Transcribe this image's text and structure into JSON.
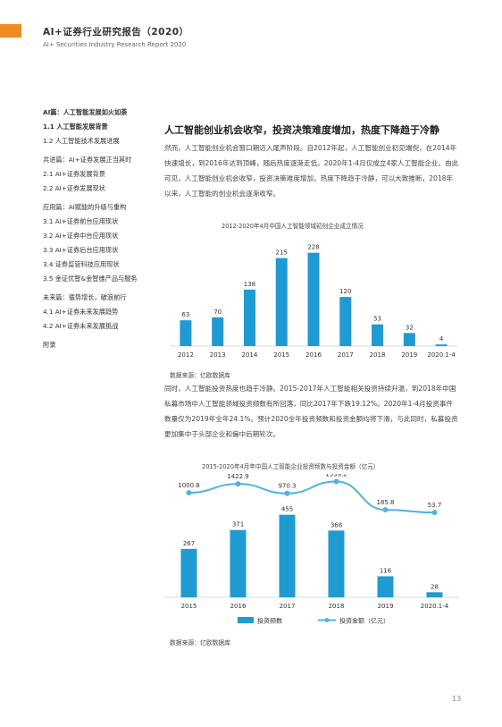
{
  "header": {
    "title": "AI+证券行业研究报告（2020）",
    "subtitle": "AI+ Securities Industry Research Report 2020",
    "accent_color": "#f08a24"
  },
  "toc": [
    {
      "label": "AI篇：人工智能发展如火如荼",
      "bold": true
    },
    {
      "label": "1.1 人工智能发展背景",
      "bold": true
    },
    {
      "label": "1.2 人工智能技术发展进展",
      "bold": false
    },
    {
      "gap": true
    },
    {
      "label": "共进篇：AI+证券发展正当其时",
      "bold": false
    },
    {
      "label": "2.1 AI+证券发展背景",
      "bold": false
    },
    {
      "label": "2.2 AI+证券发展现状",
      "bold": false
    },
    {
      "gap": true
    },
    {
      "label": "应用篇：AI赋能的升级与重构",
      "bold": false
    },
    {
      "label": "3.1 AI+证券前台应用现状",
      "bold": false
    },
    {
      "label": "3.2 AI+证券中台应用现状",
      "bold": false
    },
    {
      "label": "3.3 AI+证券后台应用现状",
      "bold": false
    },
    {
      "label": "3.4 证券监管科技应用现状",
      "bold": false
    },
    {
      "label": "3.5 金证优智&金智维产品与服务",
      "bold": false
    },
    {
      "gap": true
    },
    {
      "label": "未来篇：循势增长，破浪前行",
      "bold": false
    },
    {
      "label": "4.1 AI+证券未来发展趋势",
      "bold": false
    },
    {
      "label": "4.2 AI+证券未来发展挑战",
      "bold": false
    },
    {
      "gap": true
    },
    {
      "label": "附录",
      "bold": false
    }
  ],
  "main": {
    "title": "人工智能创业机会收窄，投资决策难度增加，热度下降趋于冷静",
    "para1": "然而，人工智能创业机会窗口期迈入尾声阶段。自2012年起，人工智能创业初见端倪，在2014年快速增长，到2016年达到顶峰，随后热度逐渐走低。2020年1-4月仅成立4家人工智能企业。由此可见，人工智能创业机会收窄，投资决策难度增加，热度下降趋于冷静，可以大致推断，2018年以来，人工智能的创业机会逐渐收窄。",
    "para2": "同时，人工智能投资热度也趋于冷静。2015-2017年人工智能相关投资持续升温，到2018年中国私募市场中人工智能领域投资频数有所回落，同比2017年下跌19.12%。2020年1-4月投资事件数量仅为2019年全年24.1%。预计2020全年投资频数和投资金额均将下滑，与此同时，私募投资更加集中于头部企业和偏中后期轮次。"
  },
  "chart1_title": "2012-2020年4月中国人工智能领域初创企业成立情况",
  "chart2_title": "2015-2020年4月年中国人工智能企业投资频数与投资金额（亿元）",
  "source1": "数据来源：亿欧数据库",
  "source2": "数据来源：亿欧数据库",
  "page_number": "13",
  "chart_data": [
    {
      "type": "bar",
      "title": "2012-2020年4月中国人工智能领域初创企业成立情况",
      "categories": [
        "2012",
        "2013",
        "2014",
        "2015",
        "2016",
        "2017",
        "2018",
        "2019",
        "2020.1-4"
      ],
      "values": [
        63,
        70,
        138,
        215,
        228,
        120,
        53,
        32,
        4
      ],
      "ylim": [
        0,
        260
      ],
      "color": "#1f9bd1"
    },
    {
      "type": "bar",
      "title": "2015-2020年4月年中国人工智能企业投资频数与投资金额（亿元）",
      "categories": [
        "2015",
        "2016",
        "2017",
        "2018",
        "2019",
        "2020.1-4"
      ],
      "series": [
        {
          "name": "投资频数",
          "type": "bar",
          "values": [
            267,
            371,
            455,
            368,
            116,
            28
          ],
          "color": "#1f9bd1",
          "ylim": [
            0,
            680
          ]
        },
        {
          "name": "投资金额（亿元）",
          "type": "line",
          "values": [
            1000.8,
            1422.9,
            970.3,
            1539.2,
            185.8,
            53.7
          ],
          "value_labels": [
            "1000.8",
            "1422.9",
            "970.3",
            "1539.2",
            "185.8",
            "53.7"
          ],
          "color": "#4fb3df",
          "ylim": [
            -4000,
            1900
          ]
        }
      ]
    }
  ]
}
